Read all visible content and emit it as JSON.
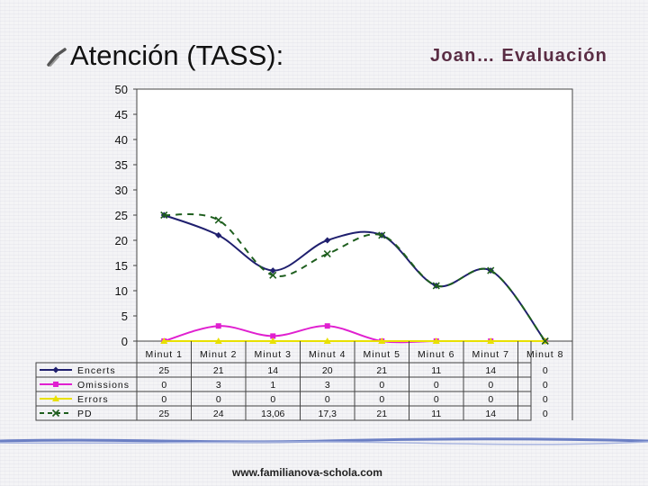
{
  "slide": {
    "title": "Atención (TASS):",
    "header_right": "Joan… Evaluación",
    "footer_url": "www.familianova-schola.com"
  },
  "chart_data": {
    "type": "line",
    "categories": [
      "Minut 1",
      "Minut 2",
      "Minut 3",
      "Minut 4",
      "Minut 5",
      "Minut 6",
      "Minut 7",
      "Minut 8"
    ],
    "ylim": [
      0,
      50
    ],
    "yticks": [
      0,
      5,
      10,
      15,
      20,
      25,
      30,
      35,
      40,
      45,
      50
    ],
    "grid": false,
    "legend": "data-table-below",
    "series": [
      {
        "name": "Encerts",
        "values": [
          25,
          21,
          14,
          20,
          21,
          11,
          14,
          0
        ],
        "labels": [
          "25",
          "21",
          "14",
          "20",
          "21",
          "11",
          "14",
          "0"
        ],
        "color": "#1f1f6e",
        "marker": "diamond",
        "dash": "solid"
      },
      {
        "name": "Omissions",
        "values": [
          0,
          3,
          1,
          3,
          0,
          0,
          0,
          0
        ],
        "labels": [
          "0",
          "3",
          "1",
          "3",
          "0",
          "0",
          "0",
          "0"
        ],
        "color": "#e020d0",
        "marker": "square",
        "dash": "solid"
      },
      {
        "name": "Errors",
        "values": [
          0,
          0,
          0,
          0,
          0,
          0,
          0,
          0
        ],
        "labels": [
          "0",
          "0",
          "0",
          "0",
          "0",
          "0",
          "0",
          "0"
        ],
        "color": "#e8e000",
        "marker": "triangle",
        "dash": "solid"
      },
      {
        "name": "PD",
        "values": [
          25,
          24,
          13.06,
          17.3,
          21,
          11,
          14,
          0
        ],
        "labels": [
          "25",
          "24",
          "13,06",
          "17,3",
          "21",
          "11",
          "14",
          "0"
        ],
        "color": "#1e5e1e",
        "marker": "x",
        "dash": "dashed"
      }
    ]
  }
}
